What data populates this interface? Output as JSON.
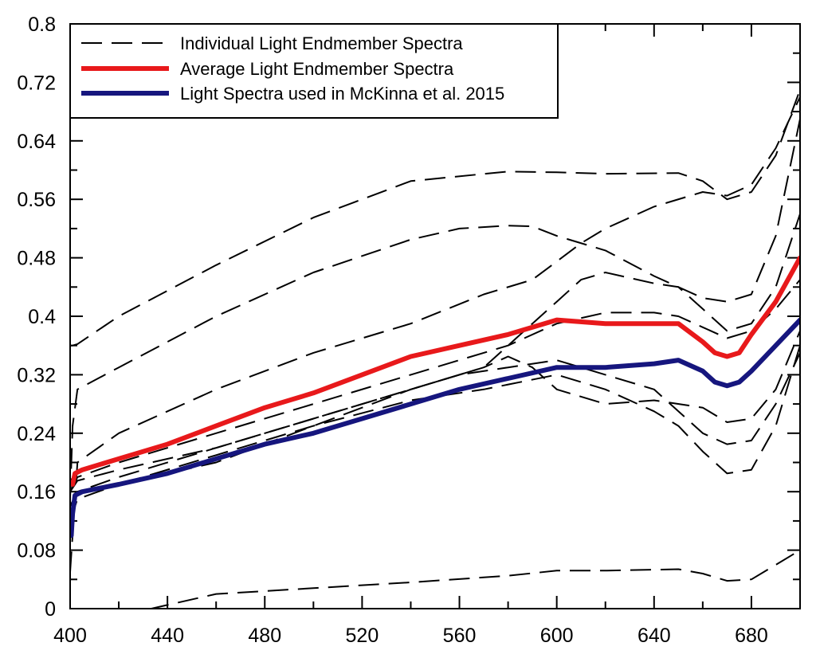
{
  "chart_data": {
    "type": "line",
    "title": "",
    "xlabel": "",
    "ylabel": "",
    "xlim": [
      400,
      700
    ],
    "ylim": [
      0,
      0.8
    ],
    "x_ticks": [
      400,
      440,
      480,
      520,
      560,
      600,
      640,
      680
    ],
    "y_ticks": [
      0,
      0.08,
      0.16,
      0.24,
      0.32,
      0.4,
      0.48,
      0.56,
      0.64,
      0.72,
      0.8
    ],
    "y_tick_labels": [
      "0",
      "0.08",
      "0.16",
      "0.24",
      "0.32",
      "0.4",
      "0.48",
      "0.56",
      "0.64",
      "0.72",
      "0.8"
    ],
    "legend": {
      "placement": "top-left",
      "entries": [
        {
          "label": "Individual Light Endmember Spectra",
          "color": "#000000",
          "style": "dashed"
        },
        {
          "label": "Average Light Endmember Spectra",
          "color": "#e8191b",
          "style": "solid"
        },
        {
          "label": "Light Spectra used in McKinna et al. 2015",
          "color": "#16167e",
          "style": "solid"
        }
      ]
    },
    "series": [
      {
        "name": "Individual Light Endmember Spectra",
        "style": "dashed",
        "color": "#000000",
        "x": [
          400,
          401,
          403,
          420,
          460,
          500,
          540,
          580,
          600,
          620,
          650,
          660,
          670,
          680,
          690,
          700
        ],
        "y": [
          0.36,
          0.36,
          0.362,
          0.4,
          0.47,
          0.535,
          0.585,
          0.598,
          0.597,
          0.595,
          0.596,
          0.585,
          0.56,
          0.57,
          0.62,
          0.71
        ]
      },
      {
        "name": "Individual Light Endmember Spectra",
        "style": "dashed",
        "color": "#000000",
        "x": [
          400,
          401,
          403,
          420,
          460,
          500,
          540,
          560,
          580,
          590,
          600,
          620,
          640,
          660,
          670,
          680,
          690,
          700
        ],
        "y": [
          0.15,
          0.25,
          0.3,
          0.33,
          0.4,
          0.46,
          0.505,
          0.52,
          0.524,
          0.523,
          0.51,
          0.49,
          0.455,
          0.425,
          0.42,
          0.43,
          0.51,
          0.67
        ]
      },
      {
        "name": "Individual Light Endmember Spectra",
        "style": "dashed",
        "color": "#000000",
        "x": [
          400,
          403,
          420,
          460,
          500,
          540,
          570,
          590,
          600,
          610,
          620,
          640,
          660,
          670,
          680,
          690,
          700
        ],
        "y": [
          0.05,
          0.2,
          0.24,
          0.3,
          0.35,
          0.39,
          0.43,
          0.45,
          0.475,
          0.5,
          0.52,
          0.55,
          0.57,
          0.565,
          0.58,
          0.63,
          0.7
        ]
      },
      {
        "name": "Individual Light Endmember Spectra",
        "style": "dashed",
        "color": "#000000",
        "x": [
          400,
          403,
          420,
          460,
          500,
          540,
          570,
          580,
          590,
          600,
          610,
          620,
          640,
          650,
          660,
          670,
          680,
          690,
          700
        ],
        "y": [
          0.12,
          0.15,
          0.17,
          0.2,
          0.25,
          0.3,
          0.33,
          0.36,
          0.39,
          0.42,
          0.45,
          0.46,
          0.445,
          0.44,
          0.41,
          0.38,
          0.39,
          0.44,
          0.54
        ]
      },
      {
        "name": "Individual Light Endmember Spectra",
        "style": "dashed",
        "color": "#000000",
        "x": [
          400,
          403,
          420,
          460,
          500,
          540,
          580,
          600,
          620,
          640,
          650,
          660,
          670,
          680,
          690,
          700
        ],
        "y": [
          0.16,
          0.18,
          0.2,
          0.24,
          0.28,
          0.32,
          0.36,
          0.39,
          0.405,
          0.405,
          0.4,
          0.385,
          0.37,
          0.38,
          0.41,
          0.45
        ]
      },
      {
        "name": "Individual Light Endmember Spectra",
        "style": "dashed",
        "color": "#000000",
        "x": [
          400,
          403,
          420,
          460,
          500,
          540,
          570,
          580,
          590,
          600,
          620,
          640,
          660,
          670,
          680,
          690,
          700
        ],
        "y": [
          0.16,
          0.175,
          0.19,
          0.22,
          0.26,
          0.3,
          0.33,
          0.345,
          0.33,
          0.3,
          0.28,
          0.285,
          0.275,
          0.255,
          0.26,
          0.3,
          0.38
        ]
      },
      {
        "name": "Individual Light Endmember Spectra",
        "style": "dashed",
        "color": "#000000",
        "x": [
          400,
          403,
          420,
          460,
          500,
          540,
          570,
          600,
          620,
          640,
          650,
          660,
          670,
          680,
          690,
          700
        ],
        "y": [
          0.14,
          0.16,
          0.17,
          0.21,
          0.25,
          0.285,
          0.3,
          0.32,
          0.3,
          0.27,
          0.25,
          0.215,
          0.185,
          0.19,
          0.25,
          0.36
        ]
      },
      {
        "name": "Individual Light Endmember Spectra",
        "style": "dashed",
        "color": "#000000",
        "x": [
          400,
          403,
          420,
          460,
          500,
          540,
          560,
          580,
          600,
          640,
          660,
          670,
          680,
          690,
          700
        ],
        "y": [
          0.14,
          0.16,
          0.18,
          0.22,
          0.26,
          0.3,
          0.32,
          0.33,
          0.34,
          0.3,
          0.24,
          0.225,
          0.23,
          0.28,
          0.35
        ]
      },
      {
        "name": "Individual Light Endmember Spectra",
        "style": "dashed",
        "color": "#000000",
        "x": [
          420,
          440,
          460,
          500,
          540,
          580,
          600,
          620,
          650,
          660,
          670,
          680,
          690,
          700
        ],
        "y": [
          -0.01,
          0.005,
          0.02,
          0.028,
          0.036,
          0.045,
          0.052,
          0.052,
          0.054,
          0.048,
          0.038,
          0.04,
          0.06,
          0.08
        ]
      },
      {
        "name": "Average Light Endmember Spectra",
        "style": "solid",
        "color": "#e8191b",
        "x": [
          401,
          402,
          405,
          420,
          440,
          460,
          480,
          500,
          520,
          540,
          560,
          580,
          600,
          620,
          640,
          650,
          660,
          665,
          670,
          675,
          680,
          690,
          700
        ],
        "y": [
          0.17,
          0.185,
          0.19,
          0.205,
          0.225,
          0.25,
          0.275,
          0.295,
          0.32,
          0.345,
          0.36,
          0.375,
          0.395,
          0.39,
          0.39,
          0.39,
          0.365,
          0.35,
          0.345,
          0.35,
          0.375,
          0.42,
          0.48
        ]
      },
      {
        "name": "Light Spectra used in McKinna et al. 2015",
        "style": "solid",
        "color": "#16167e",
        "x": [
          400.5,
          401,
          402,
          405,
          420,
          440,
          460,
          480,
          500,
          520,
          540,
          560,
          580,
          600,
          620,
          640,
          650,
          660,
          665,
          670,
          675,
          680,
          690,
          700
        ],
        "y": [
          0.1,
          0.13,
          0.155,
          0.16,
          0.17,
          0.185,
          0.205,
          0.225,
          0.24,
          0.26,
          0.28,
          0.3,
          0.315,
          0.33,
          0.33,
          0.335,
          0.34,
          0.325,
          0.31,
          0.305,
          0.31,
          0.325,
          0.36,
          0.395
        ]
      }
    ]
  }
}
